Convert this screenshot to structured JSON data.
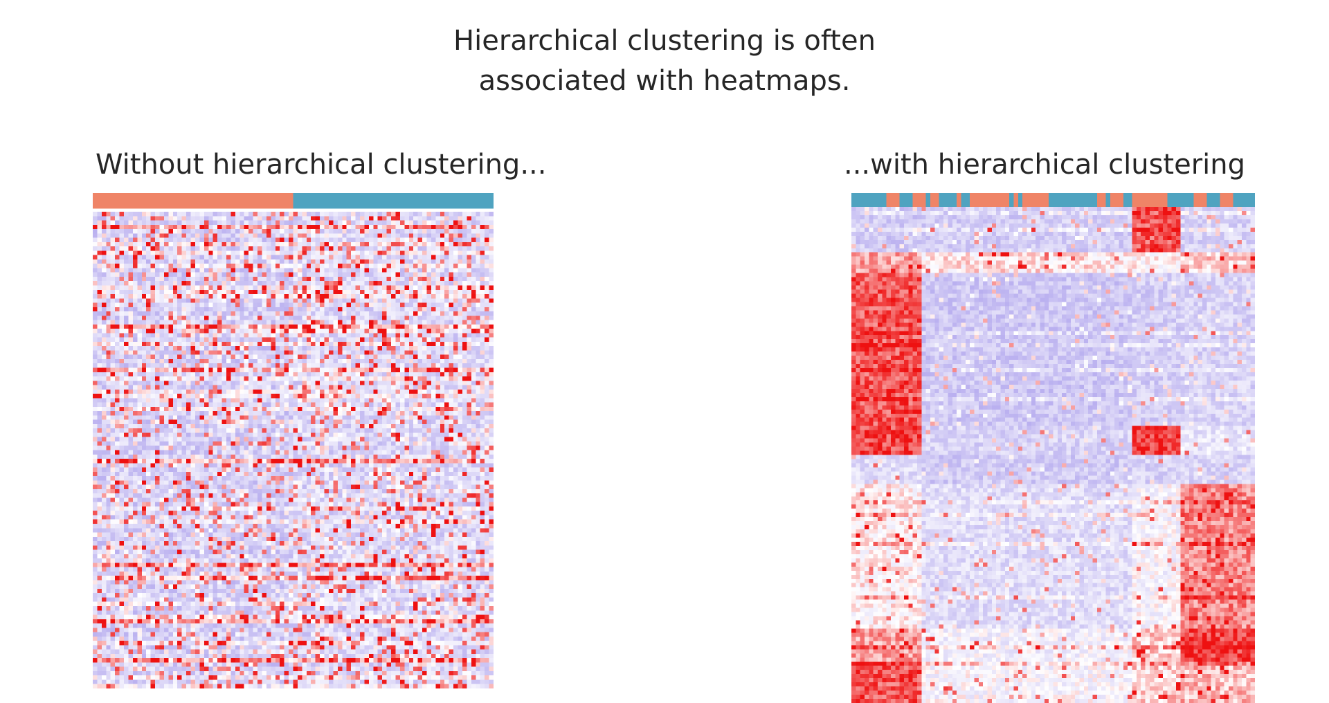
{
  "slide": {
    "title_line1": "Hierarchical clustering is often",
    "title_line2": "associated with heatmaps."
  },
  "colors": {
    "group_a": "#ef8467",
    "group_b": "#4fa3c0",
    "low": "#b3a8ee",
    "mid": "#ffffff",
    "high": "#ee1111"
  },
  "chart_data": [
    {
      "type": "heatmap",
      "title": "Without hierarchical clustering...",
      "clustered": false,
      "rows": 110,
      "columns": 90,
      "column_groups": [
        "group_a",
        "group_b"
      ],
      "column_group_split": 0.5,
      "value_range": [
        "low",
        "high"
      ],
      "color_scale": [
        "low",
        "mid",
        "high"
      ]
    },
    {
      "type": "heatmap",
      "title": "...with hierarchical clustering",
      "clustered": true,
      "rows": 120,
      "columns": 92,
      "column_groups": [
        "group_a",
        "group_b"
      ],
      "value_range": [
        "low",
        "high"
      ],
      "color_scale": [
        "low",
        "mid",
        "high"
      ]
    }
  ]
}
